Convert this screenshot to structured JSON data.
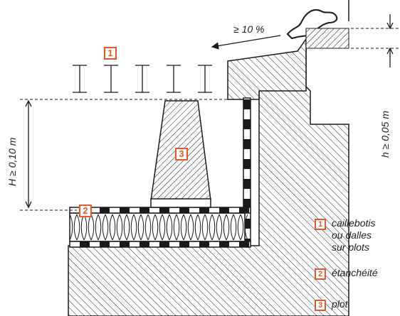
{
  "dimensions": {
    "slope": "≥ 10 %",
    "height_min": "H ≥ 0,10 m",
    "upstand_min": "h ≥ 0,05 m"
  },
  "markers": {
    "one": "1",
    "two": "2",
    "three": "3"
  },
  "legend": [
    {
      "number": "1",
      "label": "caillebotis\nou dalles\nsur plots"
    },
    {
      "number": "2",
      "label": "étanchéité"
    },
    {
      "number": "3",
      "label": "plot"
    }
  ],
  "colors": {
    "accent": "#e8572b",
    "line": "#1a1a1a"
  }
}
